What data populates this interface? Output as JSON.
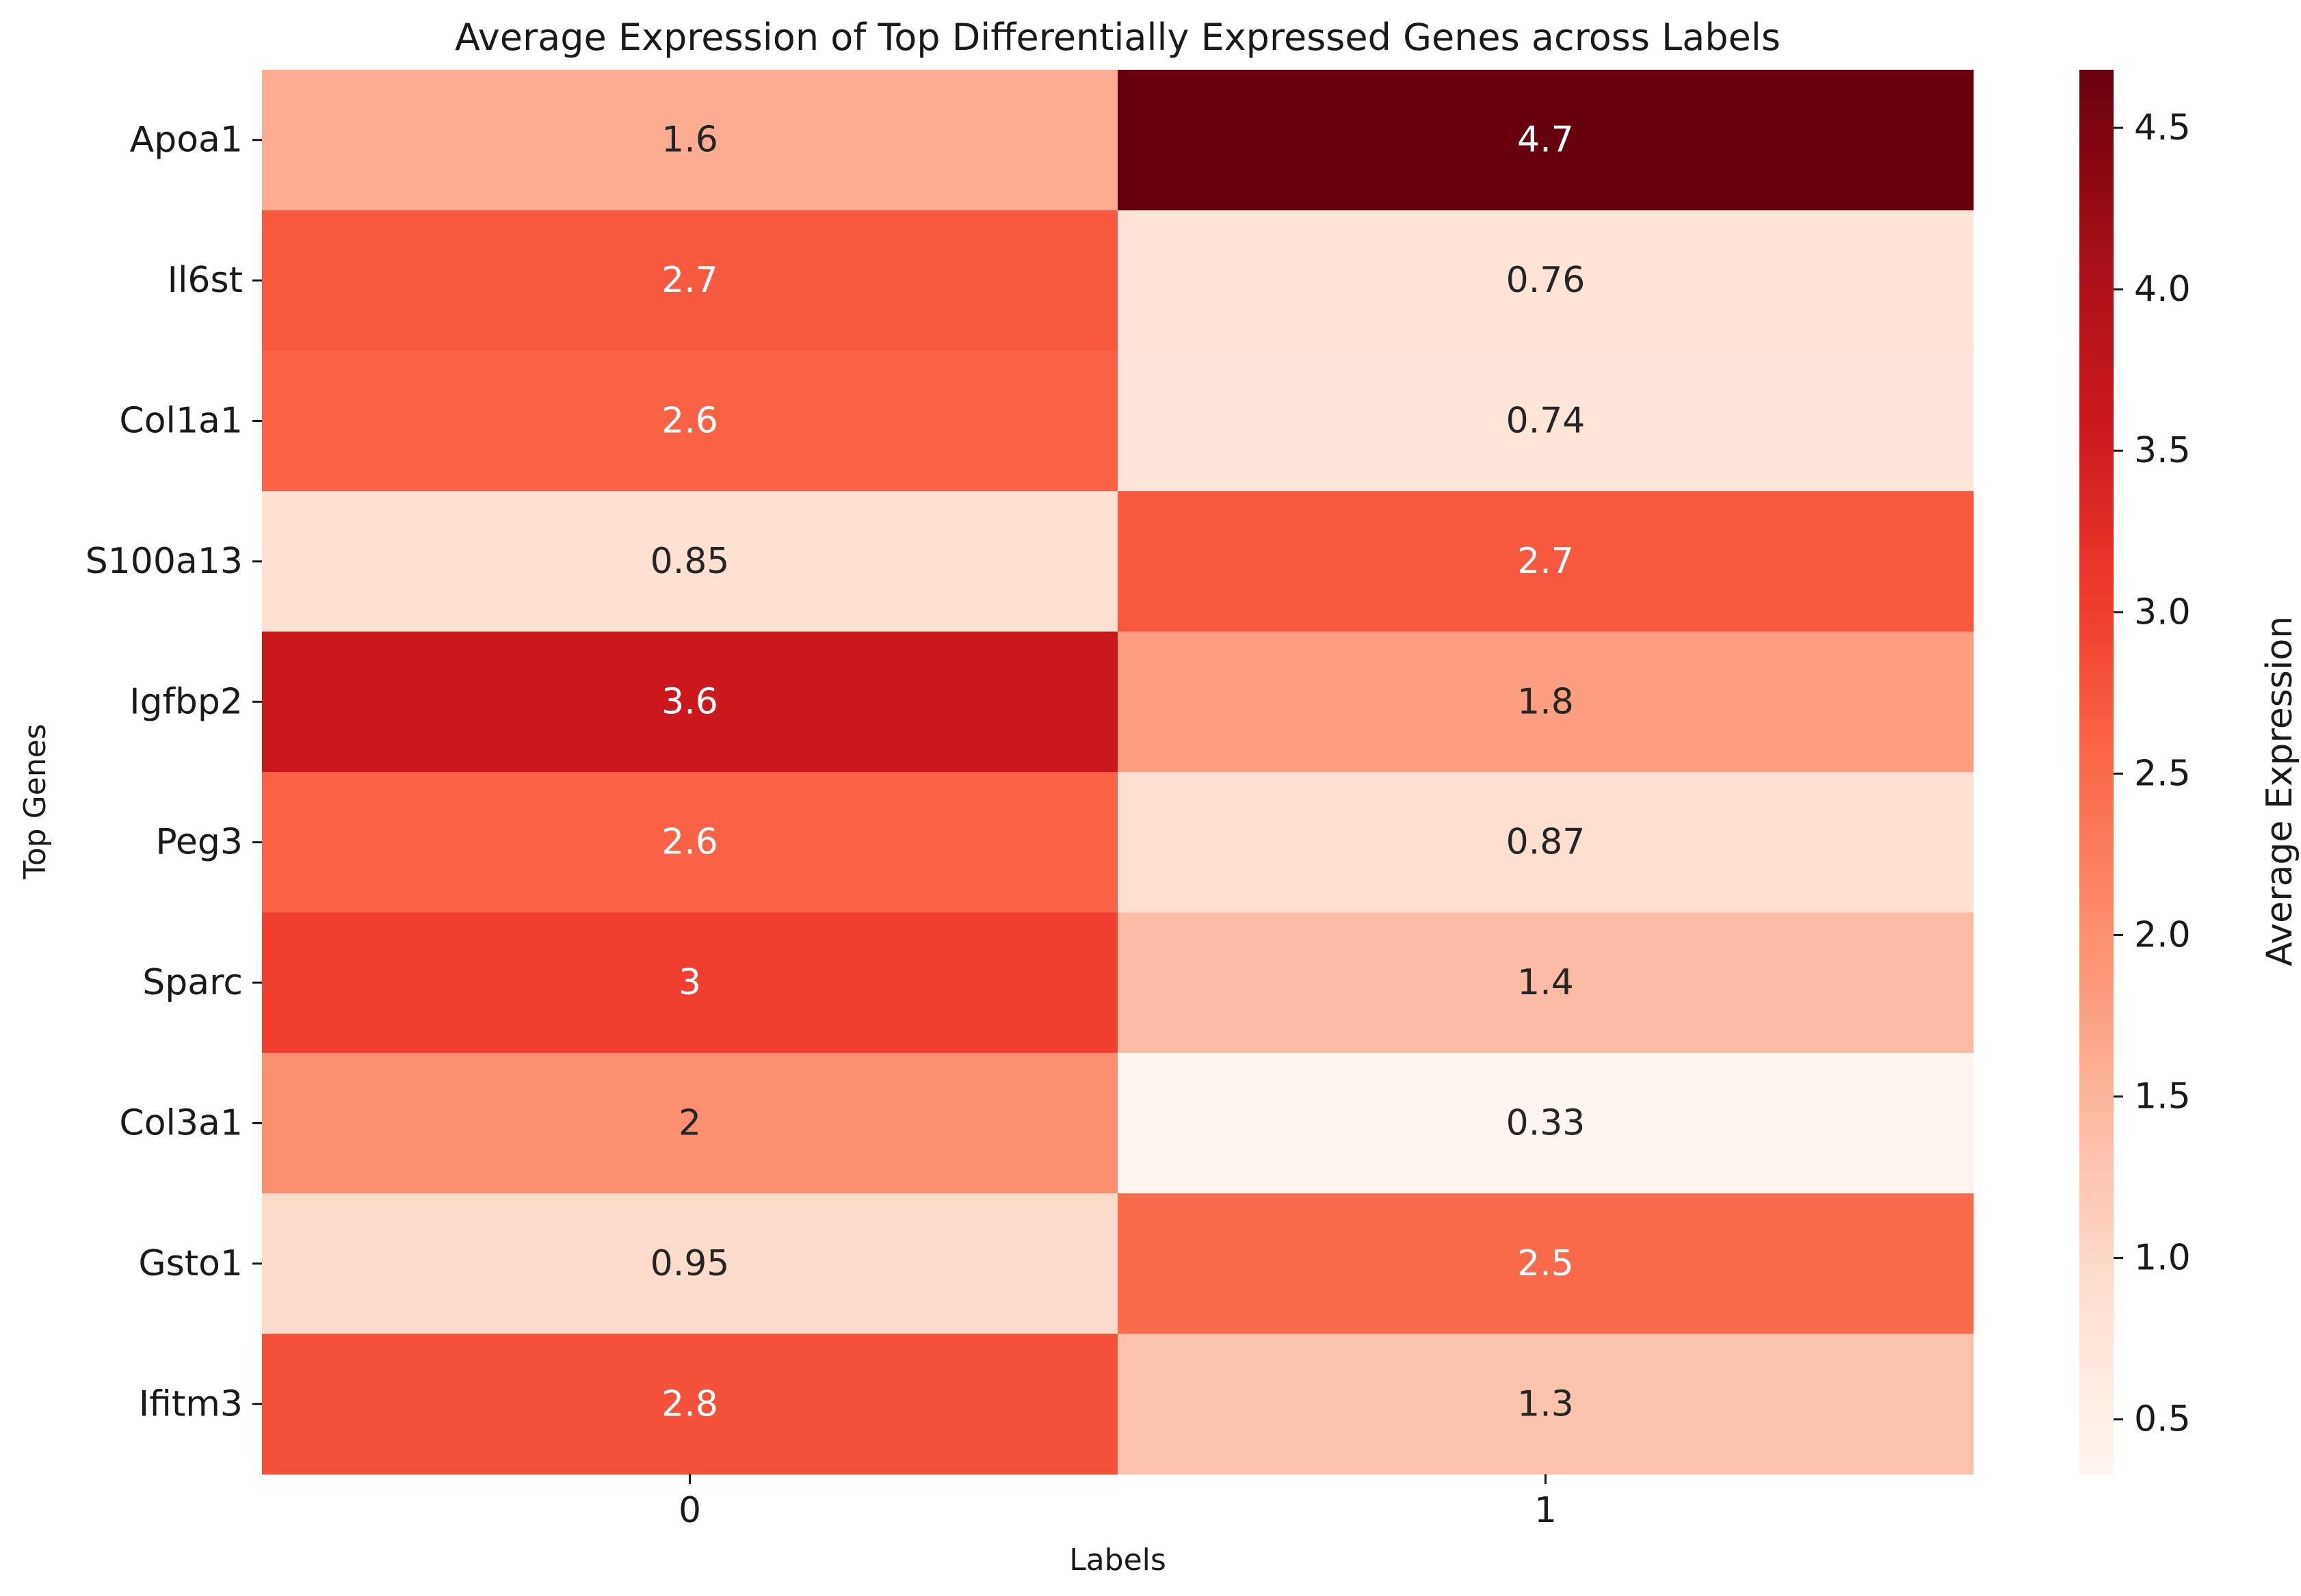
{
  "chart_data": {
    "type": "heatmap",
    "title": "Average Expression of Top Differentially Expressed Genes across Labels",
    "xlabel": "Labels",
    "ylabel": "Top Genes",
    "x_categories": [
      "0",
      "1"
    ],
    "y_categories": [
      "Apoa1",
      "Il6st",
      "Col1a1",
      "S100a13",
      "Igfbp2",
      "Peg3",
      "Sparc",
      "Col3a1",
      "Gsto1",
      "Ifitm3"
    ],
    "values": [
      [
        1.6,
        4.68
      ],
      [
        2.7,
        0.76
      ],
      [
        2.6,
        0.74
      ],
      [
        0.85,
        2.7
      ],
      [
        3.6,
        1.8
      ],
      [
        2.6,
        0.87
      ],
      [
        3.0,
        1.4
      ],
      [
        2.0,
        0.33
      ],
      [
        0.95,
        2.5
      ],
      [
        2.8,
        1.3
      ]
    ],
    "annotations": [
      [
        "1.6",
        "4.7"
      ],
      [
        "2.7",
        "0.76"
      ],
      [
        "2.6",
        "0.74"
      ],
      [
        "0.85",
        "2.7"
      ],
      [
        "3.6",
        "1.8"
      ],
      [
        "2.6",
        "0.87"
      ],
      [
        "3",
        "1.4"
      ],
      [
        "2",
        "0.33"
      ],
      [
        "0.95",
        "2.5"
      ],
      [
        "2.8",
        "1.3"
      ]
    ],
    "colorbar": {
      "label": "Average Expression",
      "colormap": "Reds",
      "vmin": 0.33,
      "vmax": 4.68,
      "ticks": [
        0.5,
        1.0,
        1.5,
        2.0,
        2.5,
        3.0,
        3.5,
        4.0,
        4.5
      ],
      "tick_labels": [
        "0.5",
        "1.0",
        "1.5",
        "2.0",
        "2.5",
        "3.0",
        "3.5",
        "4.0",
        "4.5"
      ]
    },
    "grid": false
  }
}
